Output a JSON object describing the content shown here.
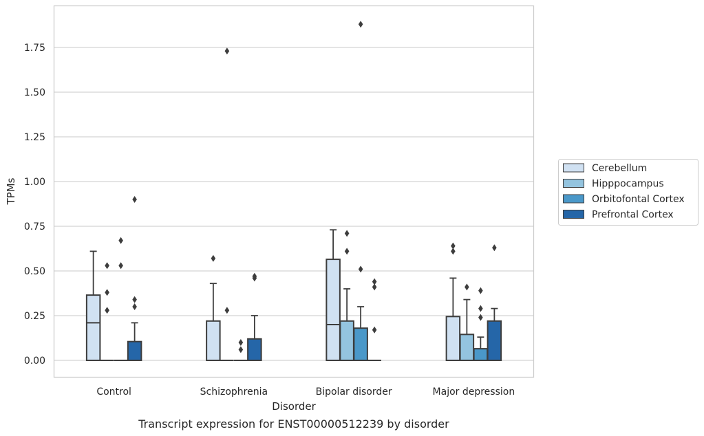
{
  "chart_data": {
    "type": "box",
    "caption": "Transcript expression for ENST00000512239 by disorder",
    "xlabel": "Disorder",
    "ylabel": "TPMs",
    "ylim": [
      -0.09,
      1.97
    ],
    "yticks": [
      0.0,
      0.25,
      0.5,
      0.75,
      1.0,
      1.25,
      1.5,
      1.75
    ],
    "ytick_labels": [
      "0.00",
      "0.25",
      "0.50",
      "0.75",
      "1.00",
      "1.25",
      "1.50",
      "1.75"
    ],
    "grid": "horizontal",
    "legend_position": "right",
    "categories": [
      "Control",
      "Schizophrenia",
      "Bipolar disorder",
      "Major depression"
    ],
    "series": [
      {
        "name": "Cerebellum",
        "color": "#d0e1f2",
        "boxes": [
          {
            "q1": 0.0,
            "median": 0.21,
            "q3": 0.365,
            "whisker_low": 0.0,
            "whisker_high": 0.61,
            "outliers": []
          },
          {
            "q1": 0.0,
            "median": 0.0,
            "q3": 0.22,
            "whisker_low": 0.0,
            "whisker_high": 0.43,
            "outliers": [
              0.57
            ]
          },
          {
            "q1": 0.0,
            "median": 0.2,
            "q3": 0.565,
            "whisker_low": 0.0,
            "whisker_high": 0.73,
            "outliers": []
          },
          {
            "q1": 0.0,
            "median": 0.0,
            "q3": 0.245,
            "whisker_low": 0.0,
            "whisker_high": 0.46,
            "outliers": [
              0.61,
              0.64
            ]
          }
        ]
      },
      {
        "name": "Hipppocampus",
        "color": "#94c4df",
        "boxes": [
          {
            "q1": 0.0,
            "median": 0.0,
            "q3": 0.0,
            "whisker_low": 0.0,
            "whisker_high": 0.0,
            "outliers": [
              0.28,
              0.38,
              0.53
            ]
          },
          {
            "q1": 0.0,
            "median": 0.0,
            "q3": 0.0,
            "whisker_low": 0.0,
            "whisker_high": 0.0,
            "outliers": [
              0.28,
              1.73
            ]
          },
          {
            "q1": 0.0,
            "median": 0.0,
            "q3": 0.22,
            "whisker_low": 0.0,
            "whisker_high": 0.4,
            "outliers": [
              0.61,
              0.71
            ]
          },
          {
            "q1": 0.0,
            "median": 0.0,
            "q3": 0.145,
            "whisker_low": 0.0,
            "whisker_high": 0.34,
            "outliers": [
              0.41
            ]
          }
        ]
      },
      {
        "name": "Orbitofontal Cortex",
        "color": "#4a98c9",
        "boxes": [
          {
            "q1": 0.0,
            "median": 0.0,
            "q3": 0.0,
            "whisker_low": 0.0,
            "whisker_high": 0.0,
            "outliers": [
              0.53,
              0.67
            ]
          },
          {
            "q1": 0.0,
            "median": 0.0,
            "q3": 0.0,
            "whisker_low": 0.0,
            "whisker_high": 0.0,
            "outliers": [
              0.06,
              0.1
            ]
          },
          {
            "q1": 0.0,
            "median": 0.0,
            "q3": 0.18,
            "whisker_low": 0.0,
            "whisker_high": 0.3,
            "outliers": [
              0.51,
              1.88
            ]
          },
          {
            "q1": 0.0,
            "median": 0.0,
            "q3": 0.065,
            "whisker_low": 0.0,
            "whisker_high": 0.13,
            "outliers": [
              0.24,
              0.29,
              0.39
            ]
          }
        ]
      },
      {
        "name": "Prefrontal Cortex",
        "color": "#2566a8",
        "boxes": [
          {
            "q1": 0.0,
            "median": 0.0,
            "q3": 0.105,
            "whisker_low": 0.0,
            "whisker_high": 0.21,
            "outliers": [
              0.3,
              0.34,
              0.9
            ]
          },
          {
            "q1": 0.0,
            "median": 0.0,
            "q3": 0.12,
            "whisker_low": 0.0,
            "whisker_high": 0.25,
            "outliers": [
              0.46,
              0.47
            ]
          },
          {
            "q1": 0.0,
            "median": 0.0,
            "q3": 0.0,
            "whisker_low": 0.0,
            "whisker_high": 0.0,
            "outliers": [
              0.17,
              0.41,
              0.44
            ]
          },
          {
            "q1": 0.0,
            "median": 0.0,
            "q3": 0.22,
            "whisker_low": 0.0,
            "whisker_high": 0.29,
            "outliers": [
              0.63
            ]
          }
        ]
      }
    ]
  }
}
